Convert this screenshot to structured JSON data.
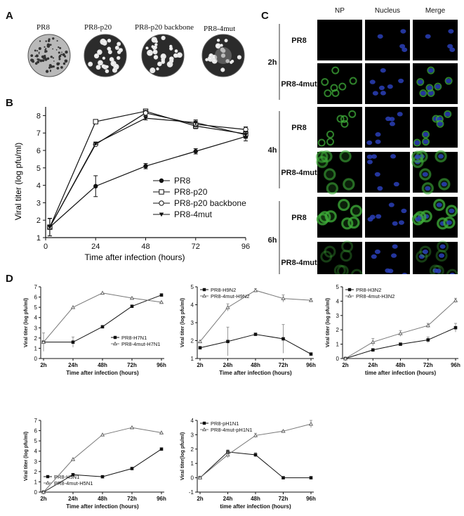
{
  "panels": {
    "a": "A",
    "b": "B",
    "c": "C",
    "d": "D"
  },
  "plaques": [
    {
      "label": "PR8",
      "density": "low"
    },
    {
      "label": "PR8-p20",
      "density": "high"
    },
    {
      "label": "PR8-p20 backbone",
      "density": "high"
    },
    {
      "label": "PR8-4mut",
      "density": "medium"
    }
  ],
  "chart_b": {
    "chart_data": {
      "type": "line",
      "title": "",
      "xlabel": "Time after infection (hours)",
      "ylabel": "Viral titer (log pfu/ml)",
      "x": [
        2,
        24,
        48,
        72,
        96
      ],
      "xticks": [
        "0",
        "24",
        "48",
        "72",
        "96"
      ],
      "yticks": [
        "1",
        "2",
        "3",
        "4",
        "5",
        "6",
        "7",
        "8"
      ],
      "xlim": [
        0,
        96
      ],
      "ylim": [
        1,
        8.5
      ],
      "legend_position": "bottom-right",
      "series": [
        {
          "name": "PR8",
          "marker": "filled-circle",
          "values": [
            1.6,
            3.95,
            5.1,
            5.95,
            6.8
          ],
          "errors": [
            0.5,
            0.6,
            0.15,
            0.15,
            0.25
          ]
        },
        {
          "name": "PR8-p20",
          "marker": "open-square",
          "values": [
            1.6,
            7.65,
            8.25,
            7.4,
            6.95
          ],
          "errors": [
            0.5,
            0.05,
            0.1,
            0.15,
            0.2
          ]
        },
        {
          "name": "PR8-p20 backbone",
          "marker": "open-circle",
          "values": [
            1.6,
            6.35,
            8.15,
            7.5,
            7.2
          ],
          "errors": [
            0.5,
            0.05,
            0.15,
            0.15,
            0.15
          ]
        },
        {
          "name": "PR8-4mut",
          "marker": "filled-triangle-down",
          "values": [
            1.6,
            6.4,
            7.85,
            7.6,
            6.9
          ],
          "errors": [
            0.5,
            0.05,
            0.1,
            0.15,
            0.2
          ]
        }
      ]
    }
  },
  "panel_c": {
    "columns": [
      "NP",
      "Nucleus",
      "Merge"
    ],
    "times": [
      "2h",
      "4h",
      "6h"
    ],
    "rows": [
      {
        "time": "2h",
        "virus": "PR8",
        "np_signal": "none"
      },
      {
        "time": "2h",
        "virus": "PR8-4mut",
        "np_signal": "nuclear"
      },
      {
        "time": "4h",
        "virus": "PR8",
        "np_signal": "nuclear"
      },
      {
        "time": "4h",
        "virus": "PR8-4mut",
        "np_signal": "diffuse"
      },
      {
        "time": "6h",
        "virus": "PR8",
        "np_signal": "cytoplasmic"
      },
      {
        "time": "6h",
        "virus": "PR8-4mut",
        "np_signal": "faint"
      }
    ],
    "colors": {
      "np": "#3fae3a",
      "nucleus": "#2a3fb8",
      "background": "#000000"
    }
  },
  "charts_d": [
    {
      "chart_data": {
        "type": "line",
        "ylabel": "Viral titer (log pfu/ml)",
        "xlabel": "Time after infection (hours)",
        "categories": [
          "2h",
          "24h",
          "48h",
          "72h",
          "96h"
        ],
        "yticks": [
          "0",
          "1",
          "2",
          "3",
          "4",
          "5",
          "6",
          "7"
        ],
        "ylim": [
          0,
          7
        ],
        "legend_position": "bottom-right",
        "series": [
          {
            "name": "PR8-H7N1",
            "marker": "filled-square",
            "values": [
              1.6,
              1.6,
              3.1,
              5.1,
              6.2
            ],
            "errors": [
              0.9,
              0.5,
              0,
              0,
              0
            ]
          },
          {
            "name": "PR8-4mut-H7N1",
            "marker": "open-triangle",
            "values": [
              1.6,
              5.0,
              6.4,
              5.9,
              5.5
            ],
            "errors": [
              0,
              0,
              0,
              0,
              0
            ]
          }
        ]
      }
    },
    {
      "chart_data": {
        "type": "line",
        "ylabel": "Viral titer (log pfu/ml)",
        "xlabel": "Time after infection (hours)",
        "categories": [
          "2h",
          "24h",
          "48h",
          "72h",
          "96h"
        ],
        "yticks": [
          "1",
          "2",
          "3",
          "4",
          "5"
        ],
        "ylim": [
          1,
          5
        ],
        "legend_position": "top-left",
        "series": [
          {
            "name": "PR8-H9N2",
            "marker": "filled-square",
            "values": [
              1.6,
              1.95,
              2.35,
              2.1,
              1.25
            ],
            "errors": [
              0,
              0.8,
              0,
              0.8,
              0
            ]
          },
          {
            "name": "PR8-4mut-H9N2",
            "marker": "open-triangle",
            "values": [
              1.95,
              3.85,
              4.8,
              4.35,
              4.25
            ],
            "errors": [
              0,
              0.2,
              0.1,
              0.2,
              0.1
            ]
          }
        ]
      }
    },
    {
      "chart_data": {
        "type": "line",
        "ylabel": "Viral titer (log pfu/ml)",
        "xlabel": "time after infection (hours)",
        "categories": [
          "2h",
          "24h",
          "48h",
          "72h",
          "96h"
        ],
        "yticks": [
          "0",
          "1",
          "2",
          "3",
          "4",
          "5"
        ],
        "ylim": [
          0,
          5
        ],
        "legend_position": "top-left",
        "series": [
          {
            "name": "PR8-H3N2",
            "marker": "filled-square",
            "values": [
              0,
              0.6,
              1.0,
              1.3,
              2.15
            ],
            "errors": [
              0,
              0.05,
              0.05,
              0.2,
              0.3
            ]
          },
          {
            "name": "PR8-4mut-H3N2",
            "marker": "open-triangle",
            "values": [
              0,
              1.15,
              1.75,
              2.3,
              4.05
            ],
            "errors": [
              0,
              0.25,
              0.2,
              0.15,
              0.15
            ]
          }
        ]
      }
    },
    {
      "chart_data": {
        "type": "line",
        "ylabel": "Viral titer (log pfu/ml)",
        "xlabel": "Time after infection (hours)",
        "categories": [
          "2h",
          "24h",
          "48h",
          "72h",
          "96h"
        ],
        "yticks": [
          "0",
          "1",
          "2",
          "3",
          "4",
          "5",
          "6",
          "7"
        ],
        "ylim": [
          0,
          7
        ],
        "legend_position": "bottom-left",
        "series": [
          {
            "name": "PR8-H5N1",
            "marker": "filled-square",
            "values": [
              0,
              1.7,
              1.5,
              2.3,
              4.2
            ],
            "errors": [
              0,
              0,
              0,
              0,
              0
            ]
          },
          {
            "name": "PR8-4mut-H5N1",
            "marker": "open-triangle",
            "values": [
              0,
              3.2,
              5.6,
              6.3,
              5.8
            ],
            "errors": [
              0,
              0,
              0,
              0,
              0
            ]
          }
        ]
      }
    },
    {
      "chart_data": {
        "type": "line",
        "ylabel": "Viral titer(log pfu/ml)",
        "xlabel": "time after infection (hours)",
        "categories": [
          "2h",
          "24h",
          "48h",
          "72h",
          "96h"
        ],
        "yticks": [
          "-1",
          "0",
          "1",
          "2",
          "3",
          "4"
        ],
        "ylim": [
          -1,
          4
        ],
        "legend_position": "top-left",
        "series": [
          {
            "name": "PR8-pH1N1",
            "marker": "filled-square",
            "values": [
              0,
              1.8,
              1.6,
              0,
              0
            ],
            "errors": [
              0,
              0.15,
              0.15,
              0,
              0
            ]
          },
          {
            "name": "PR8-4mut-pH1N1",
            "marker": "open-triangle",
            "values": [
              0,
              1.6,
              2.95,
              3.25,
              3.75
            ],
            "errors": [
              0,
              0.2,
              0.15,
              0.05,
              0.25
            ]
          }
        ]
      }
    }
  ]
}
